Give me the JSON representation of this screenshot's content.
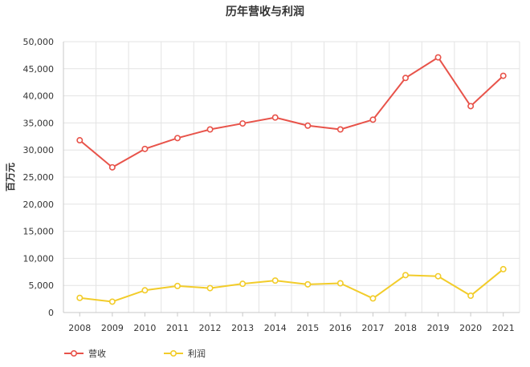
{
  "chart_data": {
    "type": "line",
    "title": "历年营收与利润",
    "xlabel": "",
    "ylabel": "百万元",
    "ylim": [
      0,
      50000
    ],
    "yticks": [
      0,
      5000,
      10000,
      15000,
      20000,
      25000,
      30000,
      35000,
      40000,
      45000,
      50000
    ],
    "ytick_labels": [
      "0",
      "5,000",
      "10,000",
      "15,000",
      "20,000",
      "25,000",
      "30,000",
      "35,000",
      "40,000",
      "45,000",
      "50,000"
    ],
    "categories": [
      "2008",
      "2009",
      "2010",
      "2011",
      "2012",
      "2013",
      "2014",
      "2015",
      "2016",
      "2017",
      "2018",
      "2019",
      "2020",
      "2021"
    ],
    "grid": true,
    "legend_position": "bottom-left",
    "series": [
      {
        "name": "营收",
        "color": "#e8534a",
        "values": [
          31800,
          26800,
          30200,
          32200,
          33800,
          34900,
          36000,
          34500,
          33800,
          35600,
          43300,
          47100,
          38100,
          43700
        ]
      },
      {
        "name": "利润",
        "color": "#f2cc2a",
        "values": [
          2700,
          2000,
          4100,
          4900,
          4500,
          5300,
          5900,
          5200,
          5400,
          2600,
          6900,
          6700,
          3100,
          8000
        ]
      }
    ]
  }
}
